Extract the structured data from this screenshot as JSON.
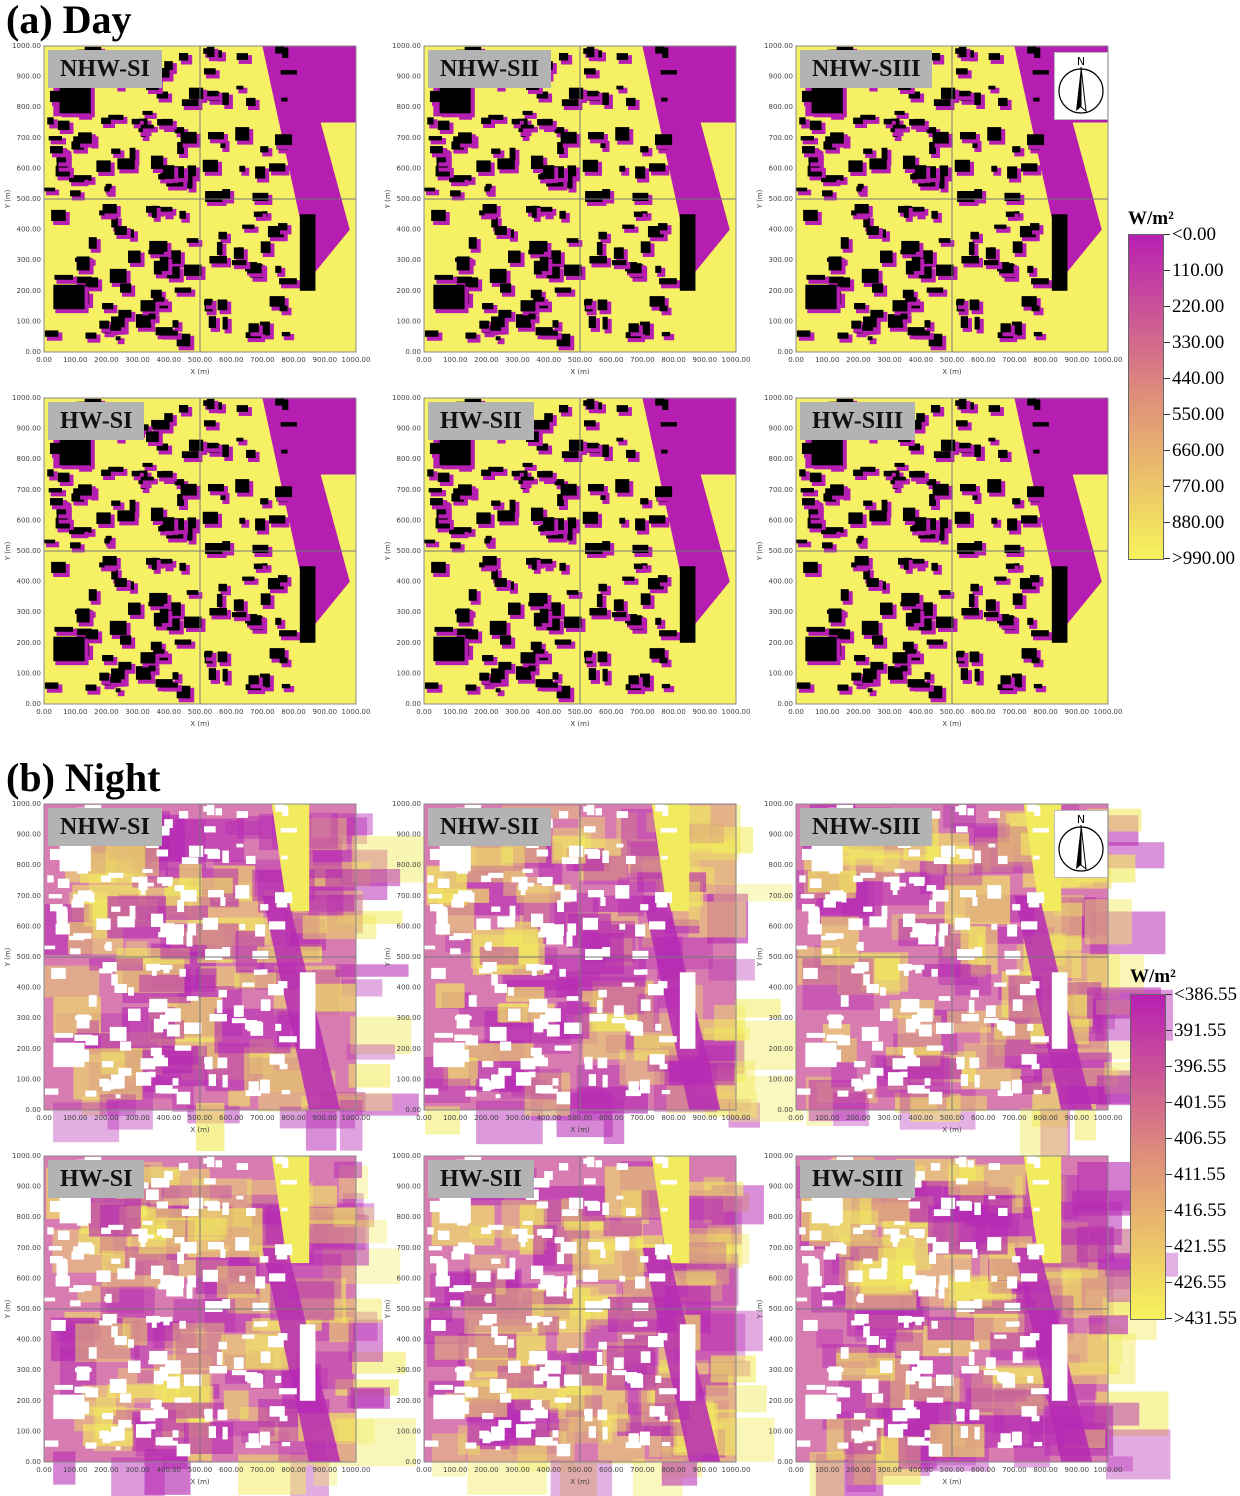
{
  "sections": {
    "day": {
      "title": "(a) Day"
    },
    "night": {
      "title": "(b) Night"
    }
  },
  "panels": {
    "labels": [
      "NHW-SI",
      "NHW-SII",
      "NHW-SIII",
      "HW-SI",
      "HW-SII",
      "HW-SIII"
    ]
  },
  "axes": {
    "xlabel": "X (m)",
    "ylabel": "Y (m)",
    "ticks": [
      "0.00",
      "100.00",
      "200.00",
      "300.00",
      "400.00",
      "500.00",
      "600.00",
      "700.00",
      "800.00",
      "900.00",
      "1000.00"
    ],
    "range": [
      0,
      1000
    ]
  },
  "north_arrow": {
    "letter": "N",
    "icon": "north-arrow-icon"
  },
  "legend_day": {
    "unit": "W/m²",
    "ticks": [
      "<0.00",
      "110.00",
      "220.00",
      "330.00",
      "440.00",
      "550.00",
      "660.00",
      "770.00",
      "880.00",
      ">990.00"
    ],
    "colors": {
      "low": "#b81fb2",
      "mid": "#df8f7a",
      "high": "#f7f25a"
    }
  },
  "legend_night": {
    "unit": "W/m²",
    "ticks": [
      "<386.55",
      "391.55",
      "396.55",
      "401.55",
      "406.55",
      "411.55",
      "416.55",
      "421.55",
      "426.55",
      ">431.55"
    ],
    "colors": {
      "low": "#b81fb2",
      "mid": "#df8f7a",
      "high": "#f7f25a"
    }
  },
  "colors": {
    "day_ground": "#f5f064",
    "day_shadow": "#b51eb0",
    "building_day": "#000000",
    "night_hot": "#f2eb5e",
    "night_cool": "#b62ab4",
    "building_night": "#ffffff",
    "label_bg": "#b3b3b3"
  }
}
